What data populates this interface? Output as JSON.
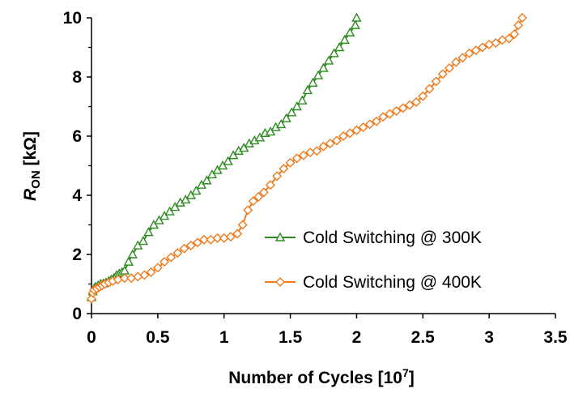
{
  "chart_data": {
    "type": "line",
    "xlabel": "Number of Cycles [10⁷]",
    "ylabel": "R_ON [kΩ]",
    "ylabel_main": "R",
    "ylabel_sub": "ON",
    "ylabel_unit": " [kΩ]",
    "xlim": [
      0,
      3.5
    ],
    "ylim": [
      0,
      10
    ],
    "x_ticks": [
      "0",
      "0.5",
      "1",
      "1.5",
      "2",
      "2.5",
      "3",
      "3.5"
    ],
    "y_ticks": [
      "0",
      "2",
      "4",
      "6",
      "8",
      "10"
    ],
    "grid": false,
    "legend_position": "center-right",
    "series": [
      {
        "name": "Cold Switching @ 300K",
        "color": "#2e8b22",
        "marker": "triangle",
        "points": [
          [
            0.0,
            0.55
          ],
          [
            0.01,
            0.75
          ],
          [
            0.02,
            0.85
          ],
          [
            0.03,
            0.9
          ],
          [
            0.05,
            0.95
          ],
          [
            0.07,
            1.0
          ],
          [
            0.09,
            1.02
          ],
          [
            0.11,
            1.05
          ],
          [
            0.13,
            1.1
          ],
          [
            0.15,
            1.15
          ],
          [
            0.17,
            1.2
          ],
          [
            0.19,
            1.3
          ],
          [
            0.21,
            1.35
          ],
          [
            0.23,
            1.4
          ],
          [
            0.25,
            1.45
          ],
          [
            0.28,
            1.75
          ],
          [
            0.31,
            2.0
          ],
          [
            0.35,
            2.3
          ],
          [
            0.39,
            2.45
          ],
          [
            0.43,
            2.75
          ],
          [
            0.47,
            3.0
          ],
          [
            0.51,
            3.15
          ],
          [
            0.55,
            3.3
          ],
          [
            0.59,
            3.45
          ],
          [
            0.63,
            3.6
          ],
          [
            0.67,
            3.75
          ],
          [
            0.71,
            3.85
          ],
          [
            0.75,
            4.0
          ],
          [
            0.79,
            4.15
          ],
          [
            0.83,
            4.35
          ],
          [
            0.87,
            4.5
          ],
          [
            0.91,
            4.7
          ],
          [
            0.95,
            4.85
          ],
          [
            0.99,
            5.0
          ],
          [
            1.03,
            5.15
          ],
          [
            1.07,
            5.35
          ],
          [
            1.11,
            5.5
          ],
          [
            1.15,
            5.6
          ],
          [
            1.19,
            5.75
          ],
          [
            1.23,
            5.85
          ],
          [
            1.27,
            5.95
          ],
          [
            1.31,
            6.1
          ],
          [
            1.35,
            6.15
          ],
          [
            1.39,
            6.3
          ],
          [
            1.43,
            6.4
          ],
          [
            1.47,
            6.6
          ],
          [
            1.51,
            6.8
          ],
          [
            1.55,
            7.0
          ],
          [
            1.59,
            7.2
          ],
          [
            1.63,
            7.55
          ],
          [
            1.67,
            7.8
          ],
          [
            1.71,
            8.05
          ],
          [
            1.75,
            8.3
          ],
          [
            1.79,
            8.55
          ],
          [
            1.83,
            8.8
          ],
          [
            1.87,
            9.0
          ],
          [
            1.91,
            9.25
          ],
          [
            1.95,
            9.5
          ],
          [
            1.99,
            9.75
          ],
          [
            2.0,
            10.0
          ]
        ]
      },
      {
        "name": "Cold Switching @ 400K",
        "color": "#f07a1c",
        "marker": "diamond",
        "points": [
          [
            0.0,
            0.5
          ],
          [
            0.01,
            0.7
          ],
          [
            0.02,
            0.8
          ],
          [
            0.04,
            0.85
          ],
          [
            0.06,
            0.9
          ],
          [
            0.08,
            0.95
          ],
          [
            0.1,
            1.0
          ],
          [
            0.13,
            1.05
          ],
          [
            0.16,
            1.1
          ],
          [
            0.2,
            1.15
          ],
          [
            0.25,
            1.2
          ],
          [
            0.3,
            1.2
          ],
          [
            0.35,
            1.25
          ],
          [
            0.4,
            1.3
          ],
          [
            0.45,
            1.4
          ],
          [
            0.5,
            1.55
          ],
          [
            0.55,
            1.75
          ],
          [
            0.6,
            1.9
          ],
          [
            0.65,
            2.05
          ],
          [
            0.7,
            2.2
          ],
          [
            0.75,
            2.3
          ],
          [
            0.8,
            2.4
          ],
          [
            0.85,
            2.5
          ],
          [
            0.9,
            2.5
          ],
          [
            0.95,
            2.55
          ],
          [
            1.0,
            2.55
          ],
          [
            1.05,
            2.6
          ],
          [
            1.1,
            2.7
          ],
          [
            1.14,
            3.0
          ],
          [
            1.18,
            3.5
          ],
          [
            1.22,
            3.8
          ],
          [
            1.26,
            3.95
          ],
          [
            1.3,
            4.1
          ],
          [
            1.35,
            4.35
          ],
          [
            1.4,
            4.65
          ],
          [
            1.45,
            4.9
          ],
          [
            1.5,
            5.1
          ],
          [
            1.55,
            5.25
          ],
          [
            1.6,
            5.35
          ],
          [
            1.65,
            5.45
          ],
          [
            1.7,
            5.5
          ],
          [
            1.75,
            5.65
          ],
          [
            1.8,
            5.75
          ],
          [
            1.85,
            5.85
          ],
          [
            1.9,
            6.0
          ],
          [
            1.95,
            6.1
          ],
          [
            2.0,
            6.2
          ],
          [
            2.05,
            6.3
          ],
          [
            2.1,
            6.4
          ],
          [
            2.15,
            6.5
          ],
          [
            2.2,
            6.65
          ],
          [
            2.25,
            6.75
          ],
          [
            2.3,
            6.85
          ],
          [
            2.35,
            6.95
          ],
          [
            2.4,
            7.05
          ],
          [
            2.45,
            7.15
          ],
          [
            2.5,
            7.35
          ],
          [
            2.55,
            7.6
          ],
          [
            2.6,
            7.85
          ],
          [
            2.65,
            8.1
          ],
          [
            2.7,
            8.3
          ],
          [
            2.75,
            8.5
          ],
          [
            2.8,
            8.65
          ],
          [
            2.85,
            8.8
          ],
          [
            2.9,
            8.9
          ],
          [
            2.95,
            9.0
          ],
          [
            3.0,
            9.1
          ],
          [
            3.05,
            9.15
          ],
          [
            3.1,
            9.25
          ],
          [
            3.15,
            9.3
          ],
          [
            3.19,
            9.45
          ],
          [
            3.22,
            9.75
          ],
          [
            3.25,
            10.0
          ]
        ]
      }
    ]
  }
}
